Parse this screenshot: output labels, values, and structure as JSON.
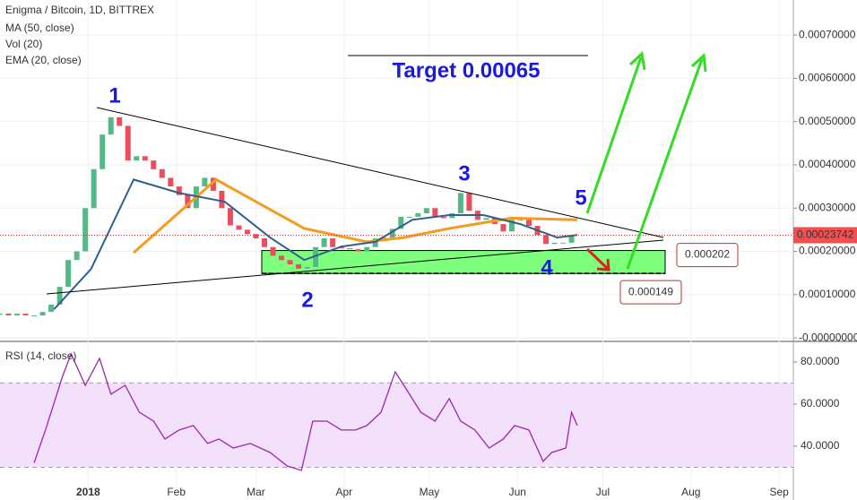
{
  "chart_data": {
    "type": "candlestick",
    "title": "Enigma / Bitcoin, 1D, BITTREX",
    "indicators": [
      "MA (50, close)",
      "Vol (20)",
      "EMA (20, close)"
    ],
    "up_color": "#53b987",
    "down_color": "#eb4d5c",
    "x": [
      0,
      3,
      6,
      9,
      12,
      15,
      18,
      21,
      24,
      27,
      30,
      33,
      36,
      39,
      42,
      45,
      48,
      51,
      54,
      57,
      60,
      63,
      66,
      69,
      72,
      75,
      78,
      81,
      84,
      87,
      90,
      93,
      96,
      99,
      102,
      105,
      108,
      111,
      114,
      117,
      120,
      123,
      126,
      129,
      132,
      135,
      138,
      141,
      144,
      147,
      150,
      153,
      156,
      159,
      162,
      165,
      168,
      171,
      174,
      177,
      180,
      183,
      186,
      189,
      192,
      195,
      198,
      201
    ],
    "close": [
      5.6e-05,
      5.2e-05,
      5.6e-05,
      5.2e-05,
      5.2e-05,
      6e-05,
      7.7e-05,
      0.000118,
      0.00018,
      0.0002,
      0.0003,
      0.00039,
      0.00047,
      0.00051,
      0.00049,
      0.00041,
      0.00042,
      0.00041,
      0.00039,
      0.00037,
      0.00035,
      0.00033,
      0.0003,
      0.00035,
      0.00037,
      0.00034,
      0.0003,
      0.00026,
      0.00025,
      0.00024,
      0.00023,
      0.00021,
      0.00019,
      0.00018,
      0.00017,
      0.00016,
      0.000164,
      0.00021,
      0.00023,
      0.00021,
      0.000207,
      0.000205,
      0.0002,
      0.00021,
      0.00023,
      0.000232,
      0.000252,
      0.00028,
      0.00028,
      0.000288,
      0.0003,
      0.00028,
      0.000277,
      0.000288,
      0.000335,
      0.000294,
      0.000273,
      0.000277,
      0.000263,
      0.000246,
      0.000273,
      0.000273,
      0.000259,
      0.000238,
      0.000217,
      0.00022,
      0.00022,
      0.000237
    ],
    "series": [
      {
        "name": "MA (50, close)",
        "color": "#f59b1e",
        "x": [
          47,
          76,
          107,
          129,
          142,
          158,
          180,
          203
        ],
        "values": [
          0.000197,
          0.000366,
          0.000253,
          0.000222,
          0.000232,
          0.000253,
          0.000277,
          0.000273
        ]
      },
      {
        "name": "EMA (20, close)",
        "color": "#2f5f8f",
        "x": [
          19,
          32,
          47,
          63,
          79,
          95,
          107,
          120,
          132,
          145,
          158,
          170,
          183,
          196,
          203
        ],
        "values": [
          6.6e-05,
          0.000159,
          0.000366,
          0.000335,
          0.000315,
          0.000232,
          0.00018,
          0.000211,
          0.000222,
          0.000273,
          0.000284,
          0.000284,
          0.000263,
          0.000232,
          0.000238
        ]
      }
    ],
    "xlim": [
      0,
      279
    ],
    "xticks": [
      {
        "value": 31,
        "label": "2018"
      },
      {
        "value": 62,
        "label": "Feb"
      },
      {
        "value": 90,
        "label": "Mar"
      },
      {
        "value": 121,
        "label": "Apr"
      },
      {
        "value": 151,
        "label": "May"
      },
      {
        "value": 182,
        "label": "Jun"
      },
      {
        "value": 212,
        "label": "Jul"
      },
      {
        "value": 243,
        "label": "Aug"
      },
      {
        "value": 274,
        "label": "Sep"
      }
    ],
    "ylim": [
      -6e-06,
      0.000781
    ],
    "yticks": [
      {
        "value": 0,
        "label": "-0.00000000"
      },
      {
        "value": 0.0001,
        "label": "0.00010000"
      },
      {
        "value": 0.0002,
        "label": "0.00020000"
      },
      {
        "value": 0.0003,
        "label": "0.00030000"
      },
      {
        "value": 0.0004,
        "label": "0.00040000"
      },
      {
        "value": 0.0005,
        "label": "0.00050000"
      },
      {
        "value": 0.0006,
        "label": "0.00060000"
      },
      {
        "value": 0.0007,
        "label": "0.00070000"
      }
    ],
    "last_price": 0.00023742,
    "zone": {
      "top": 0.000202,
      "bottom": 0.000149,
      "color": "#66ff66"
    },
    "annotations": {
      "target": "Target 0.00065",
      "p1": "1",
      "p2": "2",
      "p3": "3",
      "p4": "4",
      "p5": "5"
    },
    "rsi": {
      "title": "RSI (14, close)",
      "color": "#9c27b0",
      "x": [
        12,
        16,
        22,
        25,
        30,
        35,
        39,
        44,
        49,
        54,
        58,
        63,
        68,
        73,
        77,
        82,
        88,
        95,
        101,
        106,
        110,
        115,
        120,
        125,
        129,
        134,
        139,
        144,
        148,
        153,
        158,
        162,
        167,
        172,
        177,
        181,
        186,
        191,
        194,
        199,
        201,
        203
      ],
      "values": [
        32.1,
        47.7,
        73.2,
        83.8,
        68.9,
        81.7,
        64.7,
        68.9,
        56.1,
        51.9,
        43.4,
        47.7,
        49.8,
        41.3,
        43.4,
        39.1,
        41.3,
        37.0,
        30.6,
        28.5,
        51.9,
        51.9,
        47.7,
        47.7,
        49.8,
        56.1,
        75.3,
        64.7,
        56.1,
        51.9,
        62.6,
        51.9,
        47.7,
        39.1,
        43.4,
        49.8,
        47.7,
        32.8,
        37.0,
        39.1,
        56.1,
        49.8
      ],
      "ylim": [
        18.7,
        88.9
      ],
      "yticks": [
        {
          "value": 40,
          "label": "40.0000"
        },
        {
          "value": 60,
          "label": "60.0000"
        },
        {
          "value": 80,
          "label": "80.0000"
        }
      ],
      "band": [
        30,
        70
      ]
    }
  }
}
